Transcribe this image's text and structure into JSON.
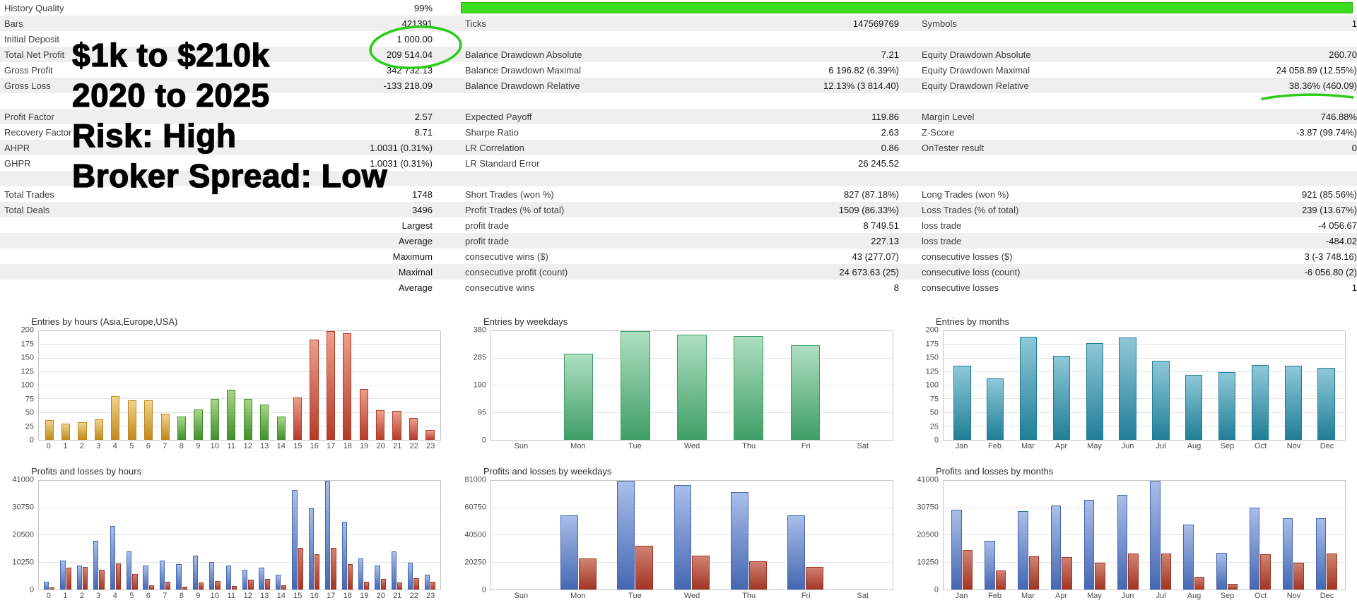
{
  "colors": {
    "progress_green": "#3CDD1C",
    "progress_border": "#2EB110",
    "annotation_green": "#2BCB1A",
    "row_shade": "#efefef"
  },
  "annotation": {
    "lines": [
      "$1k to $210k",
      "2020 to 2025",
      "Risk: High",
      "Broker Spread: Low"
    ]
  },
  "stats": {
    "rows": [
      {
        "progress": true,
        "cells": [
          "History Quality",
          "99%",
          "",
          "",
          "",
          ""
        ]
      },
      {
        "cells": [
          "Bars",
          "421391",
          "Ticks",
          "147569769",
          "Symbols",
          "1"
        ]
      },
      {
        "cells": [
          "Initial Deposit",
          "1 000.00",
          "",
          "",
          "",
          ""
        ]
      },
      {
        "cells": [
          "Total Net Profit",
          "209 514.04",
          "Balance Drawdown Absolute",
          "7.21",
          "Equity Drawdown Absolute",
          "260.70"
        ]
      },
      {
        "cells": [
          "Gross Profit",
          "342 732.13",
          "Balance Drawdown Maximal",
          "6 196.82 (6.39%)",
          "Equity Drawdown Maximal",
          "24 058.89 (12.55%)"
        ]
      },
      {
        "cells": [
          "Gross Loss",
          "-133 218.09",
          "Balance Drawdown Relative",
          "12.13% (3 814.40)",
          "Equity Drawdown Relative",
          "38.36% (460.09)"
        ]
      },
      {
        "cells": [
          "",
          "",
          "",
          "",
          "",
          ""
        ]
      },
      {
        "cells": [
          "Profit Factor",
          "2.57",
          "Expected Payoff",
          "119.86",
          "Margin Level",
          "746.88%"
        ]
      },
      {
        "cells": [
          "Recovery Factor",
          "8.71",
          "Sharpe Ratio",
          "2.63",
          "Z-Score",
          "-3.87 (99.74%)"
        ]
      },
      {
        "cells": [
          "AHPR",
          "1.0031 (0.31%)",
          "LR Correlation",
          "0.86",
          "OnTester result",
          "0"
        ]
      },
      {
        "cells": [
          "GHPR",
          "1.0031 (0.31%)",
          "LR Standard Error",
          "26 245.52",
          "",
          ""
        ]
      },
      {
        "cells": [
          "",
          "",
          "",
          "",
          "",
          ""
        ]
      },
      {
        "cells": [
          "Total Trades",
          "1748",
          "Short Trades (won %)",
          "827 (87.18%)",
          "Long Trades (won %)",
          "921 (85.56%)"
        ]
      },
      {
        "cells": [
          "Total Deals",
          "3496",
          "Profit Trades (% of total)",
          "1509 (86.33%)",
          "Loss Trades (% of total)",
          "239 (13.67%)"
        ]
      },
      {
        "cells": [
          "",
          "Largest",
          "profit trade",
          "8 749.51",
          "loss trade",
          "-4 056.67"
        ]
      },
      {
        "cells": [
          "",
          "Average",
          "profit trade",
          "227.13",
          "loss trade",
          "-484.02"
        ]
      },
      {
        "cells": [
          "",
          "Maximum",
          "consecutive wins ($)",
          "43 (277.07)",
          "consecutive losses ($)",
          "3 (-3 748.16)"
        ]
      },
      {
        "cells": [
          "",
          "Maximal",
          "consecutive profit (count)",
          "24 673.63 (25)",
          "consecutive loss (count)",
          "-6 056.80 (2)"
        ]
      },
      {
        "cells": [
          "",
          "Average",
          "consecutive wins",
          "8",
          "consecutive losses",
          "1"
        ]
      }
    ]
  },
  "palette": {
    "asia": {
      "top": "#EFD38C",
      "bottom": "#C1881C"
    },
    "europe": {
      "top": "#A9D489",
      "bottom": "#3F8F2B"
    },
    "usa": {
      "top": "#EC9E8C",
      "bottom": "#B33B28"
    },
    "weekday": {
      "top": "#AEDFC1",
      "bottom": "#3F9E66"
    },
    "month": {
      "top": "#8FC8D8",
      "bottom": "#1F7E97"
    },
    "profit": {
      "top": "#A9BEE9",
      "bottom": "#4567B2"
    },
    "loss": {
      "top": "#D08273",
      "bottom": "#A23423"
    }
  },
  "chart_data": [
    {
      "type": "bar",
      "title": "Entries by hours (Asia,Europe,USA)",
      "ymax": 200,
      "yticks": [
        200,
        175,
        150,
        125,
        100,
        75,
        50,
        25,
        0
      ],
      "categories": [
        "0",
        "1",
        "2",
        "3",
        "4",
        "5",
        "6",
        "7",
        "8",
        "9",
        "10",
        "11",
        "12",
        "13",
        "14",
        "15",
        "16",
        "17",
        "18",
        "19",
        "20",
        "21",
        "22",
        "23"
      ],
      "series": [
        {
          "name": "entries",
          "palettes": [
            "asia",
            "asia",
            "asia",
            "asia",
            "asia",
            "asia",
            "asia",
            "asia",
            "europe",
            "europe",
            "europe",
            "europe",
            "europe",
            "europe",
            "europe",
            "usa",
            "usa",
            "usa",
            "usa",
            "usa",
            "usa",
            "usa",
            "usa",
            "usa"
          ],
          "values": [
            37,
            30,
            33,
            38,
            80,
            73,
            73,
            48,
            43,
            56,
            75,
            92,
            75,
            65,
            43,
            78,
            185,
            200,
            196,
            93,
            55,
            53,
            40,
            18
          ]
        }
      ]
    },
    {
      "type": "bar",
      "title": "Entries by weekdays",
      "ymax": 380,
      "yticks": [
        380,
        285,
        190,
        95,
        0
      ],
      "categories": [
        "Sun",
        "Mon",
        "Tue",
        "Wed",
        "Thu",
        "Fri",
        "Sat"
      ],
      "series": [
        {
          "name": "entries",
          "palette": "weekday",
          "values": [
            0,
            300,
            380,
            368,
            362,
            330,
            0
          ]
        }
      ]
    },
    {
      "type": "bar",
      "title": "Entries by months",
      "ymax": 200,
      "yticks": [
        200,
        175,
        150,
        125,
        100,
        75,
        50,
        25,
        0
      ],
      "categories": [
        "Jan",
        "Feb",
        "Mar",
        "Apr",
        "May",
        "Jun",
        "Jul",
        "Aug",
        "Sep",
        "Oct",
        "Nov",
        "Dec"
      ],
      "series": [
        {
          "name": "entries",
          "palette": "month",
          "values": [
            137,
            113,
            190,
            155,
            178,
            188,
            145,
            120,
            125,
            138,
            137,
            132
          ]
        }
      ]
    },
    {
      "type": "bar",
      "title": "Profits and losses by hours",
      "ymax": 41000,
      "yticks": [
        41000,
        30750,
        20500,
        10250,
        0
      ],
      "categories": [
        "0",
        "1",
        "2",
        "3",
        "4",
        "5",
        "6",
        "7",
        "8",
        "9",
        "10",
        "11",
        "12",
        "13",
        "14",
        "15",
        "16",
        "17",
        "18",
        "19",
        "20",
        "21",
        "22",
        "23"
      ],
      "series": [
        {
          "name": "profit",
          "palette": "profit",
          "values": [
            3000,
            11000,
            9000,
            18500,
            24000,
            14500,
            9000,
            11000,
            9500,
            12800,
            10500,
            9000,
            7500,
            8200,
            5500,
            37500,
            30500,
            41000,
            25500,
            11800,
            9000,
            14500,
            10200,
            5500
          ]
        },
        {
          "name": "loss",
          "palette": "loss",
          "values": [
            700,
            8200,
            8500,
            7500,
            9800,
            5800,
            1500,
            2800,
            1200,
            2600,
            3200,
            1300,
            3600,
            3900,
            1500,
            15800,
            13200,
            15800,
            9500,
            3000,
            3900,
            2600,
            4300,
            2800
          ]
        }
      ]
    },
    {
      "type": "bar",
      "title": "Profits and losses by weekdays",
      "ymax": 81000,
      "yticks": [
        81000,
        60750,
        40500,
        20250,
        0
      ],
      "categories": [
        "Sun",
        "Mon",
        "Tue",
        "Wed",
        "Thu",
        "Fri",
        "Sat"
      ],
      "series": [
        {
          "name": "profit",
          "palette": "profit",
          "values": [
            0,
            55000,
            81000,
            78000,
            72500,
            55000,
            0
          ]
        },
        {
          "name": "loss",
          "palette": "loss",
          "values": [
            0,
            23000,
            32500,
            25500,
            20800,
            16800,
            0
          ]
        }
      ]
    },
    {
      "type": "bar",
      "title": "Profits and losses by months",
      "ymax": 41000,
      "yticks": [
        41000,
        30750,
        20500,
        10250,
        0
      ],
      "categories": [
        "Jan",
        "Feb",
        "Mar",
        "Apr",
        "May",
        "Jun",
        "Jul",
        "Aug",
        "Sep",
        "Oct",
        "Nov",
        "Dec"
      ],
      "series": [
        {
          "name": "profit",
          "palette": "profit",
          "values": [
            30000,
            18500,
            29500,
            31800,
            33800,
            35800,
            41000,
            24500,
            13800,
            30800,
            26800,
            27000
          ]
        },
        {
          "name": "loss",
          "palette": "loss",
          "values": [
            14800,
            7200,
            12600,
            12200,
            10200,
            13600,
            13600,
            4800,
            2200,
            13200,
            10000,
            13600
          ]
        }
      ]
    }
  ]
}
